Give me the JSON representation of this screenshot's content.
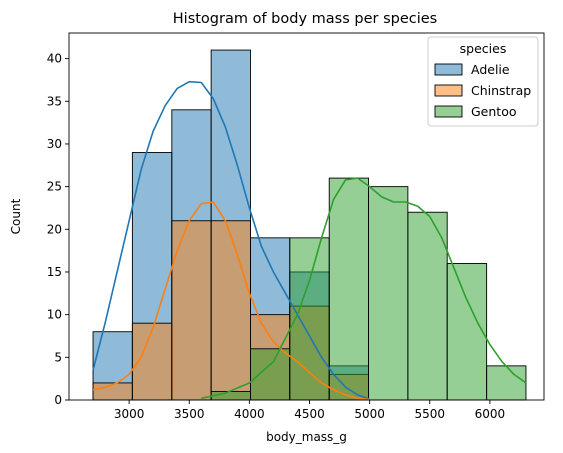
{
  "chart_data": {
    "type": "histogram",
    "title": "Histogram of body mass per species",
    "xlabel": "body_mass_g",
    "ylabel": "Count",
    "xlim": [
      2500,
      6450
    ],
    "ylim": [
      0,
      43
    ],
    "xticks": [
      3000,
      3500,
      4000,
      4500,
      5000,
      5500,
      6000
    ],
    "yticks": [
      0,
      5,
      10,
      15,
      20,
      25,
      30,
      35,
      40
    ],
    "bin_edges": [
      2700,
      3027,
      3355,
      3682,
      4009,
      4336,
      4664,
      4991,
      5318,
      5645,
      5973,
      6300
    ],
    "grid": false,
    "legend": {
      "title": "species",
      "placement": "top-right"
    },
    "series": [
      {
        "name": "Adelie",
        "color": "#1f77b4",
        "counts": [
          8,
          29,
          34,
          41,
          19,
          15,
          4,
          0,
          0,
          0,
          0
        ],
        "kde": {
          "x": [
            2700,
            2800,
            2900,
            3000,
            3100,
            3200,
            3300,
            3400,
            3500,
            3600,
            3700,
            3800,
            3900,
            4000,
            4100,
            4200,
            4300,
            4400,
            4500,
            4600,
            4700,
            4800,
            4900,
            5000
          ],
          "y": [
            3.5,
            9,
            15,
            21,
            27,
            31.5,
            34.5,
            36.5,
            37.3,
            37.2,
            35.3,
            32,
            27.5,
            22.5,
            18,
            15,
            12.5,
            10,
            7.5,
            5,
            3,
            1.5,
            0.6,
            0.1
          ]
        }
      },
      {
        "name": "Chinstrap",
        "color": "#ff7f0e",
        "counts": [
          2,
          9,
          21,
          21,
          10,
          11,
          3,
          0,
          0,
          0,
          0
        ],
        "kde": {
          "x": [
            2700,
            2800,
            2900,
            3000,
            3100,
            3200,
            3300,
            3400,
            3500,
            3600,
            3700,
            3800,
            3900,
            4000,
            4100,
            4200,
            4300,
            4400,
            4500,
            4600,
            4700,
            4800,
            4900,
            5000
          ],
          "y": [
            1.2,
            1.5,
            2,
            3,
            5,
            8.5,
            13,
            17.5,
            21,
            23,
            23.2,
            21,
            17,
            12.5,
            9,
            6.8,
            5.5,
            4.5,
            3.2,
            2,
            1.2,
            0.6,
            0.2,
            0.05
          ]
        }
      },
      {
        "name": "Gentoo",
        "color": "#2ca02c",
        "counts": [
          0,
          0,
          0,
          1,
          6,
          19,
          26,
          25,
          22,
          16,
          4
        ],
        "kde": {
          "x": [
            3600,
            3800,
            4000,
            4200,
            4400,
            4500,
            4600,
            4700,
            4800,
            4900,
            5000,
            5100,
            5200,
            5300,
            5400,
            5500,
            5600,
            5700,
            5800,
            5900,
            6000,
            6100,
            6200,
            6300
          ],
          "y": [
            0.2,
            0.8,
            2,
            4.5,
            10,
            14,
            19,
            23.5,
            25.8,
            26,
            25,
            23.8,
            23.2,
            23.2,
            22.7,
            21.5,
            19,
            15.5,
            12,
            9,
            6.5,
            4.5,
            3,
            2
          ]
        }
      }
    ]
  }
}
